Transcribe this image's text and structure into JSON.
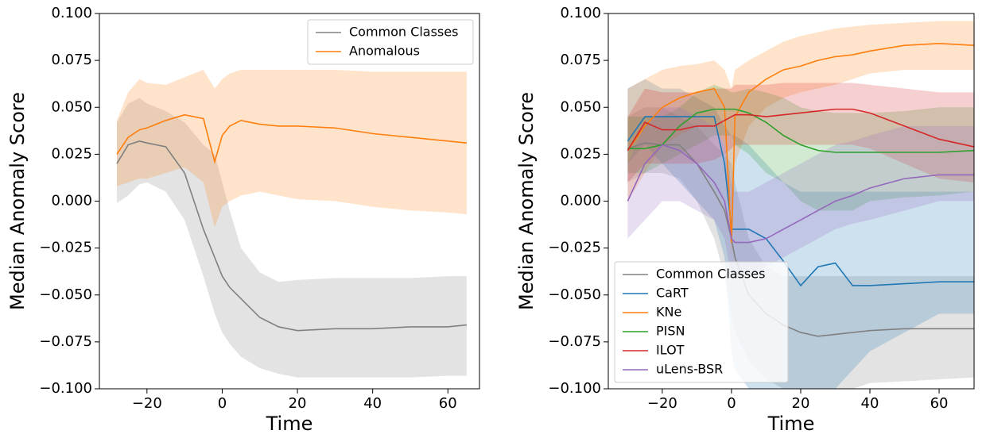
{
  "chart_data": [
    {
      "type": "line",
      "xlabel": "Time",
      "ylabel": "Median Anomaly Score",
      "legend": "upper right",
      "x": [
        -28,
        -25,
        -22,
        -20,
        -15,
        -10,
        -5,
        -2,
        0,
        2,
        5,
        10,
        15,
        20,
        30,
        40,
        50,
        60,
        65
      ],
      "xlim": [
        -32.65,
        68.4
      ],
      "ylim": [
        -0.1,
        0.1
      ],
      "xticks": [
        {
          "value": -20,
          "label": "−20"
        },
        0,
        20,
        40,
        60
      ],
      "yticks": [
        {
          "value": 0.1,
          "label": "0.100"
        },
        {
          "value": 0.075,
          "label": "0.075"
        },
        {
          "value": 0.05,
          "label": "0.050"
        },
        {
          "value": 0.025,
          "label": "0.025"
        },
        {
          "value": 0,
          "label": "0.000"
        },
        {
          "value": -0.025,
          "label": "−0.025"
        },
        {
          "value": -0.05,
          "label": "−0.050"
        },
        {
          "value": -0.075,
          "label": "−0.075"
        },
        {
          "value": -0.1,
          "label": "−0.100"
        }
      ],
      "series": [
        {
          "name": "Common Classes",
          "color": "#808080",
          "values": [
            0.02,
            0.03,
            0.032,
            0.031,
            0.029,
            0.015,
            -0.015,
            -0.03,
            -0.04,
            -0.046,
            -0.052,
            -0.062,
            -0.067,
            -0.069,
            -0.068,
            -0.068,
            -0.067,
            -0.067,
            -0.066
          ],
          "lower": [
            -0.001,
            0.003,
            0.009,
            0.01,
            0.005,
            -0.01,
            -0.04,
            -0.06,
            -0.07,
            -0.076,
            -0.083,
            -0.089,
            -0.092,
            -0.094,
            -0.094,
            -0.094,
            -0.094,
            -0.093,
            -0.093
          ],
          "upper": [
            0.042,
            0.052,
            0.055,
            0.052,
            0.048,
            0.042,
            0.03,
            0.025,
            0.01,
            -0.005,
            -0.025,
            -0.038,
            -0.043,
            -0.042,
            -0.041,
            -0.041,
            -0.041,
            -0.04,
            -0.04
          ]
        },
        {
          "name": "Anomalous",
          "color": "#ff7f0e",
          "values": [
            0.025,
            0.034,
            0.038,
            0.039,
            0.043,
            0.046,
            0.044,
            0.021,
            0.035,
            0.04,
            0.043,
            0.041,
            0.04,
            0.04,
            0.039,
            0.036,
            0.034,
            0.032,
            0.031
          ],
          "lower": [
            0.008,
            0.01,
            0.012,
            0.012,
            0.015,
            0.018,
            0.01,
            -0.014,
            -0.003,
            0,
            0.003,
            0.005,
            0.003,
            0.001,
            0,
            -0.003,
            -0.005,
            -0.006,
            -0.007
          ],
          "upper": [
            0.043,
            0.058,
            0.065,
            0.063,
            0.062,
            0.066,
            0.07,
            0.06,
            0.065,
            0.068,
            0.07,
            0.07,
            0.07,
            0.07,
            0.07,
            0.069,
            0.069,
            0.069,
            0.069
          ]
        }
      ]
    },
    {
      "type": "line",
      "xlabel": "Time",
      "ylabel": "Median Anomaly Score",
      "legend": "lower left",
      "x": [
        -30,
        -25,
        -20,
        -15,
        -10,
        -5,
        -2,
        0,
        1,
        5,
        10,
        15,
        20,
        25,
        30,
        35,
        40,
        50,
        60,
        70
      ],
      "xlim": [
        -35.6,
        70.1
      ],
      "ylim": [
        -0.1,
        0.1
      ],
      "xticks": [
        {
          "value": -20,
          "label": "−20"
        },
        0,
        20,
        40,
        60
      ],
      "yticks": [
        {
          "value": 0.1,
          "label": "0.100"
        },
        {
          "value": 0.075,
          "label": "0.075"
        },
        {
          "value": 0.05,
          "label": "0.050"
        },
        {
          "value": 0.025,
          "label": "0.025"
        },
        {
          "value": 0,
          "label": "0.000"
        },
        {
          "value": -0.025,
          "label": "−0.025"
        },
        {
          "value": -0.05,
          "label": "−0.050"
        },
        {
          "value": -0.075,
          "label": "−0.075"
        },
        {
          "value": -0.1,
          "label": "−0.100"
        }
      ],
      "series": [
        {
          "name": "Common Classes",
          "color": "#808080",
          "values": [
            0.028,
            0.031,
            0.03,
            0.03,
            0.02,
            0.005,
            -0.005,
            -0.02,
            -0.03,
            -0.05,
            -0.06,
            -0.066,
            -0.07,
            -0.072,
            -0.071,
            -0.07,
            -0.069,
            -0.068,
            -0.068,
            -0.068
          ],
          "lower": [
            0.01,
            0.015,
            0.015,
            0.012,
            0,
            -0.02,
            -0.04,
            -0.06,
            -0.07,
            -0.085,
            -0.095,
            -0.1,
            -0.1,
            -0.1,
            -0.1,
            -0.1,
            -0.097,
            -0.096,
            -0.095,
            -0.094
          ],
          "upper": [
            0.045,
            0.05,
            0.05,
            0.045,
            0.04,
            0.03,
            0.025,
            0.02,
            0.01,
            -0.02,
            -0.035,
            -0.04,
            -0.04,
            -0.04,
            -0.04,
            -0.04,
            -0.04,
            -0.04,
            -0.04,
            -0.04
          ]
        },
        {
          "name": "CaRT",
          "color": "#1f77b4",
          "values": [
            0.032,
            0.045,
            0.045,
            0.045,
            0.045,
            0.045,
            0.02,
            -0.015,
            -0.015,
            -0.015,
            -0.02,
            -0.032,
            -0.045,
            -0.035,
            -0.033,
            -0.045,
            -0.045,
            -0.044,
            -0.043,
            -0.043
          ],
          "lower": [
            0.02,
            0.03,
            0.02,
            0.01,
            0,
            -0.01,
            -0.03,
            -0.08,
            -0.09,
            -0.1,
            -0.1,
            -0.1,
            -0.1,
            -0.1,
            -0.1,
            -0.09,
            -0.08,
            -0.07,
            -0.06,
            -0.06
          ],
          "upper": [
            0.06,
            0.065,
            0.06,
            0.06,
            0.055,
            0.05,
            0.04,
            0.035,
            0.035,
            0.03,
            0.02,
            0.01,
            0.005,
            0.005,
            0.005,
            0.005,
            0.005,
            0.005,
            0.005,
            0.005
          ]
        },
        {
          "name": "KNe",
          "color": "#ff7f0e",
          "values": [
            0.027,
            0.04,
            0.05,
            0.055,
            0.058,
            0.06,
            0.05,
            -0.022,
            0.045,
            0.058,
            0.065,
            0.07,
            0.072,
            0.075,
            0.077,
            0.078,
            0.08,
            0.083,
            0.084,
            0.083
          ],
          "lower": [
            0,
            0.015,
            0.03,
            0.035,
            0.04,
            0.04,
            0.03,
            -0.03,
            0.02,
            0.04,
            0.05,
            0.055,
            0.058,
            0.06,
            0.062,
            0.065,
            0.068,
            0.07,
            0.07,
            0.07
          ],
          "upper": [
            0.06,
            0.065,
            0.07,
            0.072,
            0.073,
            0.075,
            0.07,
            0.06,
            0.07,
            0.075,
            0.08,
            0.085,
            0.088,
            0.09,
            0.092,
            0.093,
            0.094,
            0.095,
            0.096,
            0.096
          ]
        },
        {
          "name": "PISN",
          "color": "#2ca02c",
          "values": [
            0.028,
            0.028,
            0.03,
            0.04,
            0.047,
            0.049,
            0.049,
            0.049,
            0.049,
            0.047,
            0.042,
            0.035,
            0.03,
            0.027,
            0.026,
            0.026,
            0.026,
            0.026,
            0.026,
            0.027
          ],
          "lower": [
            0.015,
            0.015,
            0.02,
            0.025,
            0.03,
            0.035,
            0.035,
            0.035,
            0.03,
            0.025,
            0.015,
            0.01,
            0,
            -0.005,
            -0.005,
            -0.005,
            0,
            0.002,
            0.003,
            0.005
          ],
          "upper": [
            0.045,
            0.045,
            0.045,
            0.05,
            0.058,
            0.062,
            0.06,
            0.058,
            0.058,
            0.06,
            0.058,
            0.055,
            0.05,
            0.048,
            0.047,
            0.047,
            0.047,
            0.048,
            0.05,
            0.05
          ]
        },
        {
          "name": "ILOT",
          "color": "#d62728",
          "values": [
            0.027,
            0.042,
            0.038,
            0.038,
            0.04,
            0.04,
            0.043,
            0.045,
            0.046,
            0.046,
            0.045,
            0.046,
            0.047,
            0.048,
            0.049,
            0.049,
            0.047,
            0.04,
            0.033,
            0.029
          ],
          "lower": [
            0.01,
            0.02,
            0.02,
            0.02,
            0.02,
            0.022,
            0.025,
            0.028,
            0.03,
            0.03,
            0.03,
            0.03,
            0.03,
            0.03,
            0.03,
            0.03,
            0.028,
            0.02,
            0.012,
            0.01
          ],
          "upper": [
            0.045,
            0.06,
            0.058,
            0.058,
            0.058,
            0.06,
            0.06,
            0.06,
            0.062,
            0.062,
            0.062,
            0.063,
            0.063,
            0.063,
            0.063,
            0.063,
            0.062,
            0.06,
            0.058,
            0.058
          ]
        },
        {
          "name": "uLens-BSR",
          "color": "#9467bd",
          "values": [
            0,
            0.02,
            0.03,
            0.027,
            0.02,
            0.01,
            0,
            -0.02,
            -0.022,
            -0.022,
            -0.02,
            -0.015,
            -0.01,
            -0.005,
            0,
            0.003,
            0.007,
            0.012,
            0.014,
            0.014
          ],
          "lower": [
            -0.02,
            -0.01,
            0,
            0,
            -0.005,
            -0.01,
            -0.02,
            -0.04,
            -0.04,
            -0.04,
            -0.035,
            -0.03,
            -0.025,
            -0.02,
            -0.015,
            -0.012,
            -0.01,
            -0.005,
            0,
            0
          ],
          "upper": [
            0.02,
            0.04,
            0.05,
            0.05,
            0.045,
            0.04,
            0.03,
            0.01,
            0.005,
            0.005,
            0.01,
            0.015,
            0.02,
            0.025,
            0.03,
            0.032,
            0.035,
            0.04,
            0.04,
            0.04
          ]
        }
      ]
    }
  ]
}
